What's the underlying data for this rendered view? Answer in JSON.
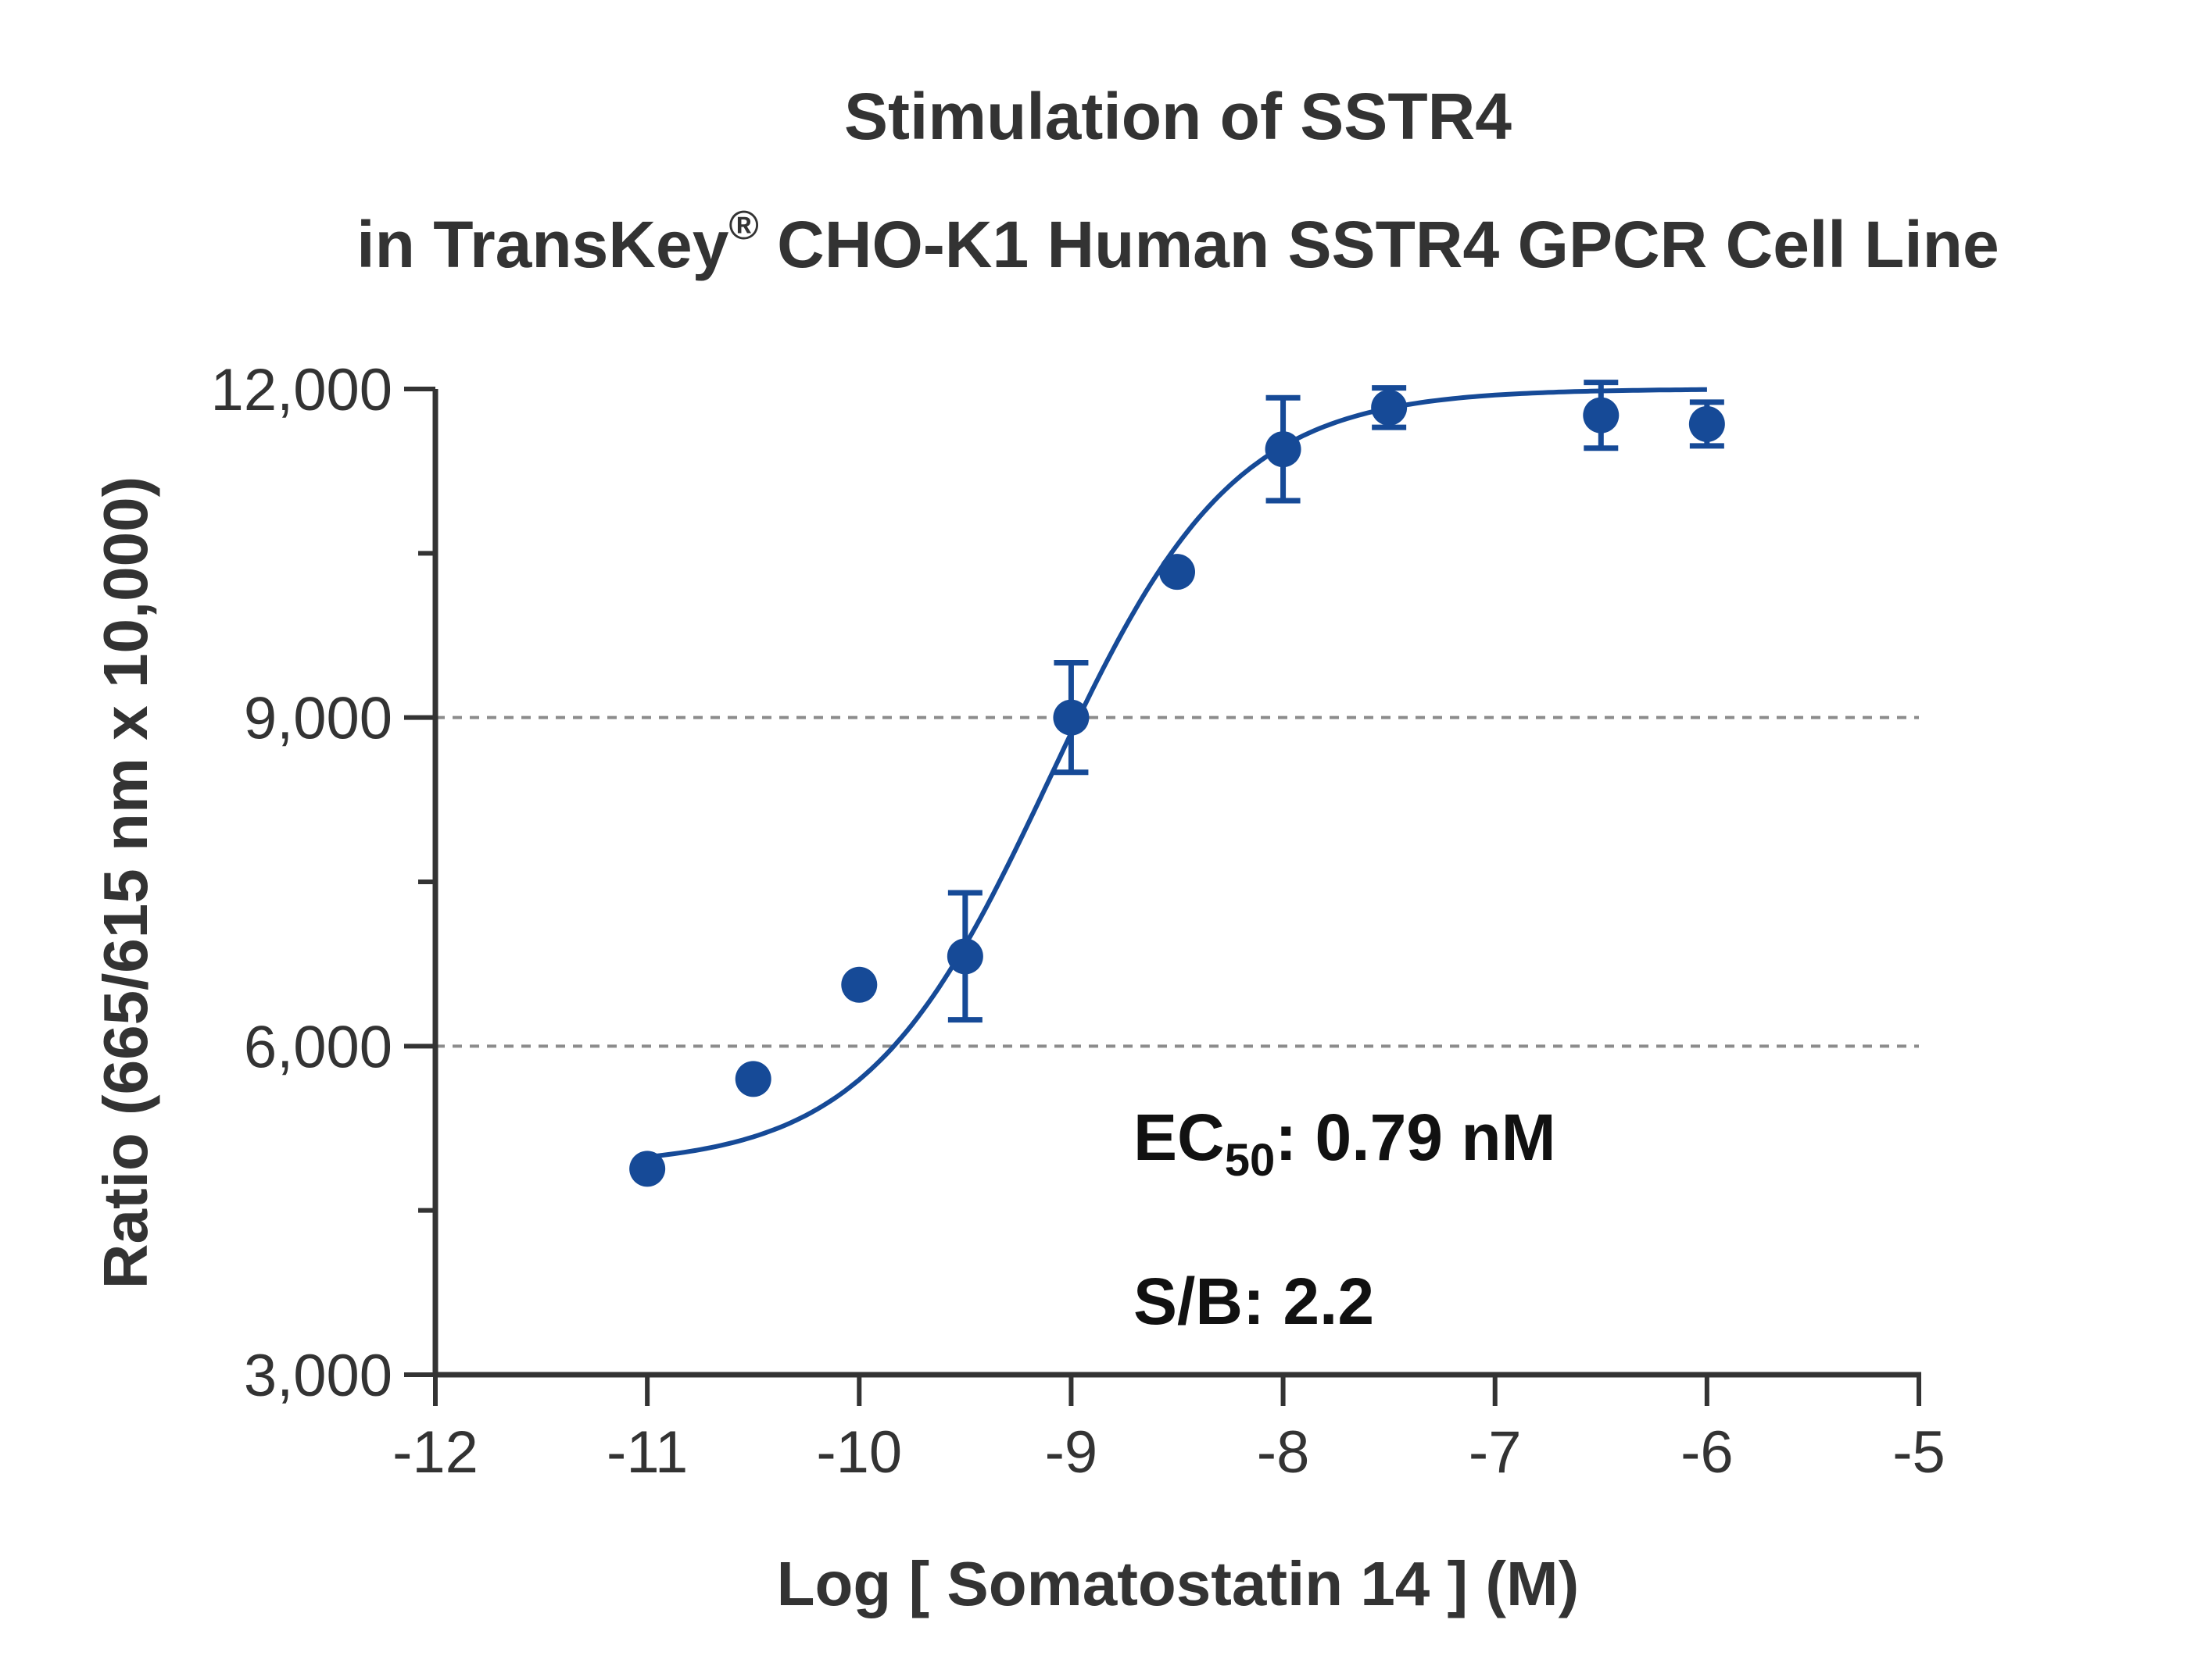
{
  "chart_data": {
    "type": "scatter",
    "title_line1": "Stimulation of  SSTR4",
    "title_line2_prefix": "in TransKey",
    "title_line2_sup": "®",
    "title_line2_suffix": " CHO-K1 Human SSTR4 GPCR Cell Line",
    "xlabel": "Log [ Somatostatin 14 ]  (M)",
    "ylabel": "Ratio (665/615 nm x 10,000)",
    "xlim": [
      -12,
      -5
    ],
    "ylim": [
      3000,
      12000
    ],
    "x_ticks": [
      -12,
      -11,
      -10,
      -9,
      -8,
      -7,
      -6,
      -5
    ],
    "x_tick_labels": [
      "-12",
      "-11",
      "-10",
      "-9",
      "-8",
      "-7",
      "-6",
      "-5"
    ],
    "y_ticks": [
      3000,
      6000,
      9000,
      12000
    ],
    "y_tick_labels": [
      "3,000",
      "6,000",
      "9,000",
      "12,000"
    ],
    "y_minor_ticks": [
      4500,
      7500,
      10500
    ],
    "grid_y": [
      6000,
      9000
    ],
    "series": [
      {
        "x": [
          -11,
          -10.5,
          -10,
          -9.5,
          -9,
          -8.5,
          -8,
          -7.5,
          -6.5,
          -6
        ],
        "y": [
          4880,
          5700,
          6560,
          6820,
          9000,
          10330,
          11450,
          11830,
          11760,
          11680
        ],
        "err": [
          0,
          0,
          0,
          580,
          500,
          0,
          470,
          180,
          300,
          200
        ]
      }
    ],
    "fit_curve": {
      "bottom": 4900,
      "top": 12000,
      "log_ec50": -9.1,
      "hill": 1.0,
      "x_range": [
        -11,
        -6
      ]
    },
    "color": "#164a97",
    "annotations": {
      "ec50_prefix": "EC",
      "ec50_sub": "50",
      "ec50_suffix": ": 0.79 nM",
      "sb": "S/B: 2.2"
    }
  }
}
